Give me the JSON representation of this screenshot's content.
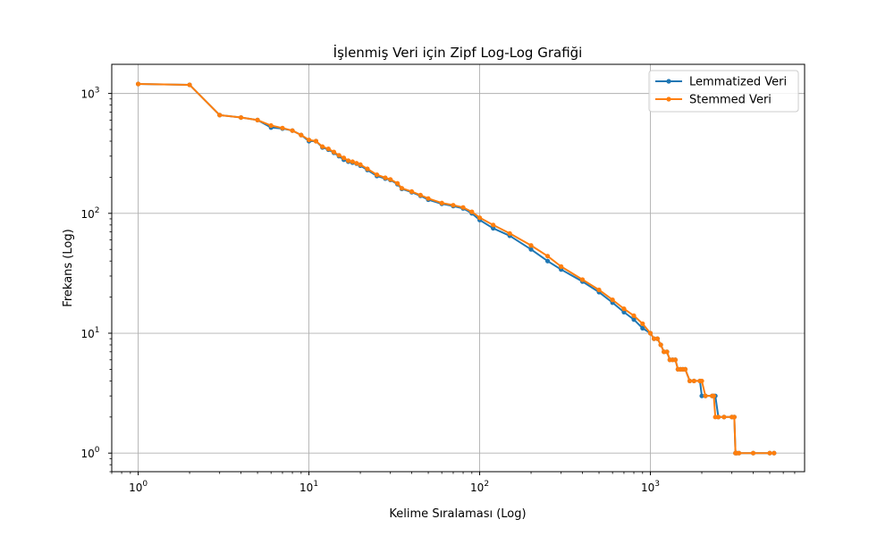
{
  "chart_data": {
    "type": "line",
    "title": "İşlenmiş Veri için Zipf Log-Log Grafiği",
    "xlabel": "Kelime Sıralaması (Log)",
    "ylabel": "Frekans (Log)",
    "xscale": "log",
    "yscale": "log",
    "xlim": [
      0.7,
      8000
    ],
    "ylim": [
      0.7,
      1750
    ],
    "grid": true,
    "legend_position": "top-right",
    "xticks": [
      {
        "base": "10",
        "exp": "0",
        "value": 1
      },
      {
        "base": "10",
        "exp": "1",
        "value": 10
      },
      {
        "base": "10",
        "exp": "2",
        "value": 100
      },
      {
        "base": "10",
        "exp": "3",
        "value": 1000
      }
    ],
    "yticks": [
      {
        "base": "10",
        "exp": "0",
        "value": 1
      },
      {
        "base": "10",
        "exp": "1",
        "value": 10
      },
      {
        "base": "10",
        "exp": "2",
        "value": 100
      },
      {
        "base": "10",
        "exp": "3",
        "value": 1000
      }
    ],
    "series": [
      {
        "name": "Lemmatized Veri",
        "color": "#1f77b4",
        "x": [
          1,
          2,
          3,
          4,
          5,
          6,
          7,
          8,
          9,
          10,
          11,
          12,
          13,
          14,
          15,
          16,
          17,
          18,
          19,
          20,
          22,
          25,
          28,
          30,
          33,
          35,
          40,
          45,
          50,
          60,
          70,
          80,
          90,
          100,
          120,
          150,
          200,
          250,
          300,
          400,
          500,
          600,
          700,
          800,
          900,
          1000,
          1050,
          1100,
          1150,
          1200,
          1250,
          1300,
          1350,
          1400,
          1450,
          1500,
          1550,
          1600,
          1700,
          1800,
          1950,
          2000,
          2100,
          2300,
          2350,
          2400,
          2500,
          2700,
          3000,
          3100,
          3150,
          3200,
          3300,
          4000,
          5000,
          5300
        ],
        "y": [
          1200,
          1180,
          660,
          630,
          600,
          520,
          510,
          490,
          450,
          400,
          400,
          355,
          340,
          320,
          300,
          280,
          270,
          265,
          260,
          250,
          230,
          205,
          195,
          190,
          175,
          160,
          150,
          140,
          130,
          120,
          115,
          110,
          100,
          88,
          75,
          65,
          50,
          40,
          34,
          27,
          22,
          18,
          15,
          13,
          11,
          10,
          9,
          9,
          8,
          7,
          7,
          6,
          6,
          6,
          5,
          5,
          5,
          5,
          4,
          4,
          4,
          3,
          3,
          3,
          3,
          3,
          2,
          2,
          2,
          2,
          1,
          1,
          1,
          1,
          1,
          1
        ]
      },
      {
        "name": "Stemmed Veri",
        "color": "#ff7f0e",
        "x": [
          1,
          2,
          3,
          4,
          5,
          6,
          7,
          8,
          9,
          10,
          11,
          12,
          13,
          14,
          15,
          16,
          17,
          18,
          19,
          20,
          22,
          25,
          28,
          30,
          33,
          35,
          40,
          45,
          50,
          60,
          70,
          80,
          90,
          100,
          120,
          150,
          200,
          250,
          300,
          400,
          500,
          600,
          700,
          800,
          900,
          1000,
          1050,
          1100,
          1150,
          1200,
          1250,
          1300,
          1350,
          1400,
          1450,
          1500,
          1550,
          1600,
          1700,
          1800,
          1950,
          2000,
          2100,
          2300,
          2350,
          2400,
          2500,
          2700,
          3000,
          3100,
          3150,
          3200,
          3300,
          4000,
          5000,
          5300
        ],
        "y": [
          1200,
          1180,
          660,
          630,
          600,
          540,
          515,
          490,
          450,
          410,
          400,
          360,
          345,
          325,
          305,
          290,
          275,
          270,
          262,
          255,
          235,
          210,
          198,
          192,
          178,
          162,
          152,
          142,
          133,
          122,
          117,
          112,
          103,
          92,
          80,
          68,
          54,
          44,
          36,
          28,
          23,
          19,
          16,
          14,
          12,
          10,
          9,
          9,
          8,
          7,
          7,
          6,
          6,
          6,
          5,
          5,
          5,
          5,
          4,
          4,
          4,
          4,
          3,
          3,
          3,
          2,
          2,
          2,
          2,
          2,
          1,
          1,
          1,
          1,
          1,
          1
        ]
      }
    ]
  }
}
